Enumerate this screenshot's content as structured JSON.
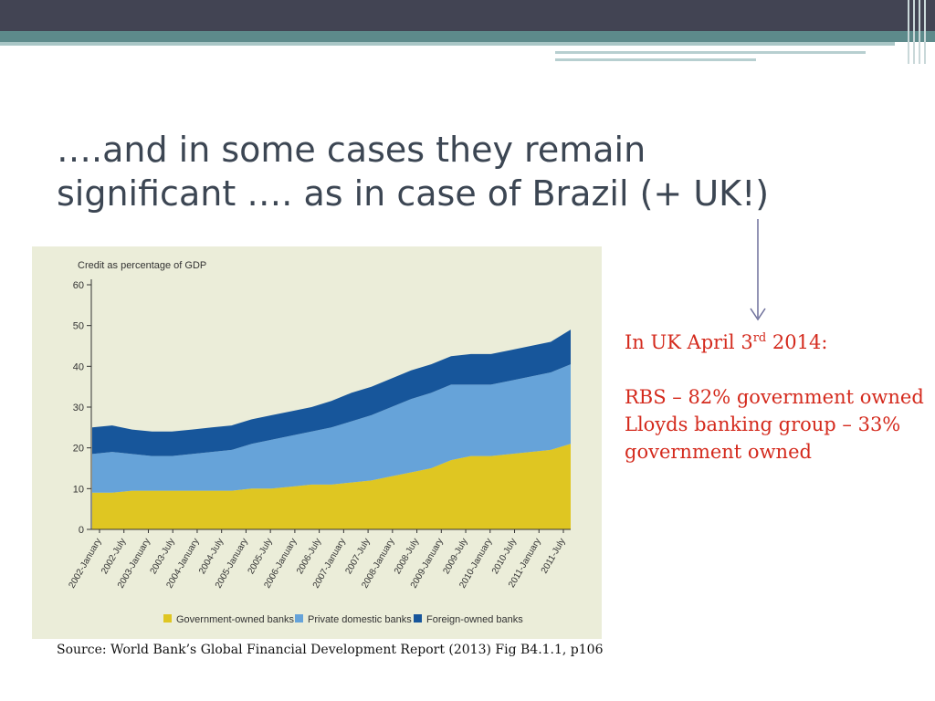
{
  "slide": {
    "title_line1": "….and in some cases they remain",
    "title_line2": "significant …. as in case of Brazil (+ UK!)",
    "annotation": {
      "heading_pre": "In UK April 3",
      "heading_sup": "rd",
      "heading_post": " 2014:",
      "line1": "RBS – 82% government owned",
      "line2": "Lloyds banking group – 33%  government owned"
    },
    "source": "Source: World Bank’s Global Financial Development Report (2013) Fig B4.1.1, p106",
    "colors": {
      "topbar": "#424453",
      "teal": "#5d8a8b",
      "annotation_red": "#d42a1d",
      "arrow": "#6d6f9a"
    }
  },
  "chart_data": {
    "type": "area",
    "stacked": true,
    "ylabel": "Credit as percentage of GDP",
    "ylim": [
      0,
      60
    ],
    "yticks": [
      0,
      10,
      20,
      30,
      40,
      50,
      60
    ],
    "x_ticks": [
      "2002-January",
      "2002-July",
      "2003-January",
      "2003-July",
      "2004-January",
      "2004-July",
      "2005-January",
      "2005-July",
      "2006-January",
      "2006-July",
      "2007-January",
      "2007-July",
      "2008-January",
      "2008-July",
      "2009-January",
      "2009-July",
      "2010-January",
      "2010-July",
      "2011-January",
      "2011-July"
    ],
    "series": [
      {
        "name": "Government-owned banks",
        "color": "#dfc622",
        "values": [
          9,
          9,
          9.5,
          9.5,
          9.5,
          9.5,
          9.5,
          9.5,
          10,
          10,
          10.5,
          11,
          11,
          11.5,
          12,
          13,
          14,
          15,
          17,
          18,
          18,
          18.5,
          19,
          19.5,
          21
        ]
      },
      {
        "name": "Private domestic banks",
        "color": "#66a3d9",
        "values": [
          9.5,
          10,
          9,
          8.5,
          8.5,
          9,
          9.5,
          10,
          11,
          12,
          12.5,
          13,
          14,
          15,
          16,
          17,
          18,
          18.5,
          18.5,
          17.5,
          17.5,
          18,
          18.5,
          19,
          19.5
        ]
      },
      {
        "name": "Foreign-owned banks",
        "color": "#17569b",
        "values": [
          6.5,
          6.5,
          6,
          6,
          6,
          6,
          6,
          6,
          6,
          6,
          6,
          6,
          6.5,
          7,
          7,
          7,
          7,
          7,
          7,
          7.5,
          7.5,
          7.5,
          7.5,
          7.5,
          8.5
        ]
      }
    ],
    "legend_position": "bottom"
  }
}
